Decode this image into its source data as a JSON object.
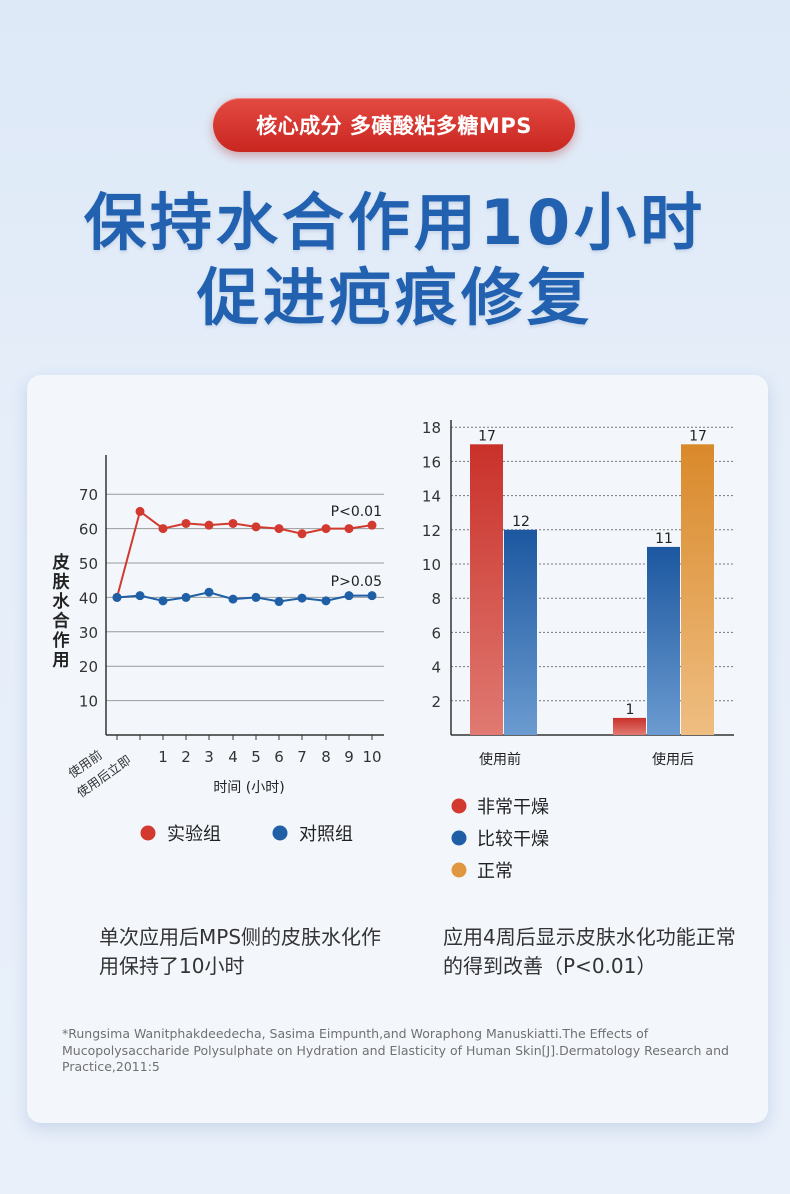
{
  "header": {
    "pill": "核心成分 多磺酸粘多糖MPS",
    "title_line1": "保持水合作用10小时",
    "title_line2": "促进疤痕修复"
  },
  "colors": {
    "red": "#d23a2f",
    "blue": "#1f5fa6",
    "orange": "#e0973f",
    "title_blue": "#2161b0"
  },
  "chart_data": [
    {
      "type": "line",
      "ylabel": "皮肤水合作用",
      "xlabel": "时间 (小时)",
      "x": [
        "使用前",
        "使用后立即",
        "1",
        "2",
        "3",
        "4",
        "5",
        "6",
        "7",
        "8",
        "9",
        "10"
      ],
      "ylim": [
        0,
        80
      ],
      "yticks": [
        10,
        20,
        30,
        40,
        50,
        60,
        70
      ],
      "grid": true,
      "series": [
        {
          "name": "实验组",
          "values": [
            40,
            65,
            60,
            61.5,
            61,
            61.5,
            60.5,
            60,
            58.5,
            60,
            60,
            61
          ],
          "annotation": "P<0.01"
        },
        {
          "name": "对照组",
          "values": [
            40,
            40.5,
            39,
            40,
            41.5,
            39.5,
            40,
            38.8,
            39.8,
            39,
            40.5,
            40.5
          ],
          "annotation": "P>0.05"
        }
      ],
      "legend": "bottom"
    },
    {
      "type": "bar",
      "categories": [
        "使用前",
        "使用后"
      ],
      "ylim": [
        0,
        18
      ],
      "yticks": [
        2,
        4,
        6,
        8,
        10,
        12,
        14,
        16,
        18
      ],
      "grid": true,
      "series": [
        {
          "name": "非常干燥",
          "values": [
            17,
            1
          ]
        },
        {
          "name": "比较干燥",
          "values": [
            12,
            11
          ]
        },
        {
          "name": "正常",
          "values": [
            0,
            17
          ]
        }
      ],
      "legend": "bottom"
    }
  ],
  "captions": {
    "left": "单次应用后MPS侧的皮肤水化作用保持了10小时",
    "right": "应用4周后显示皮肤水化功能正常的得到改善（P<0.01）"
  },
  "reference": "*Rungsima Wanitphakdeedecha, Sasima Eimpunth,and Woraphong Manuskiatti.The Effects of Mucopolysaccharide Polysulphate on Hydration and Elasticity of Human Skin[J].Dermatology Research and Practice,2011:5"
}
